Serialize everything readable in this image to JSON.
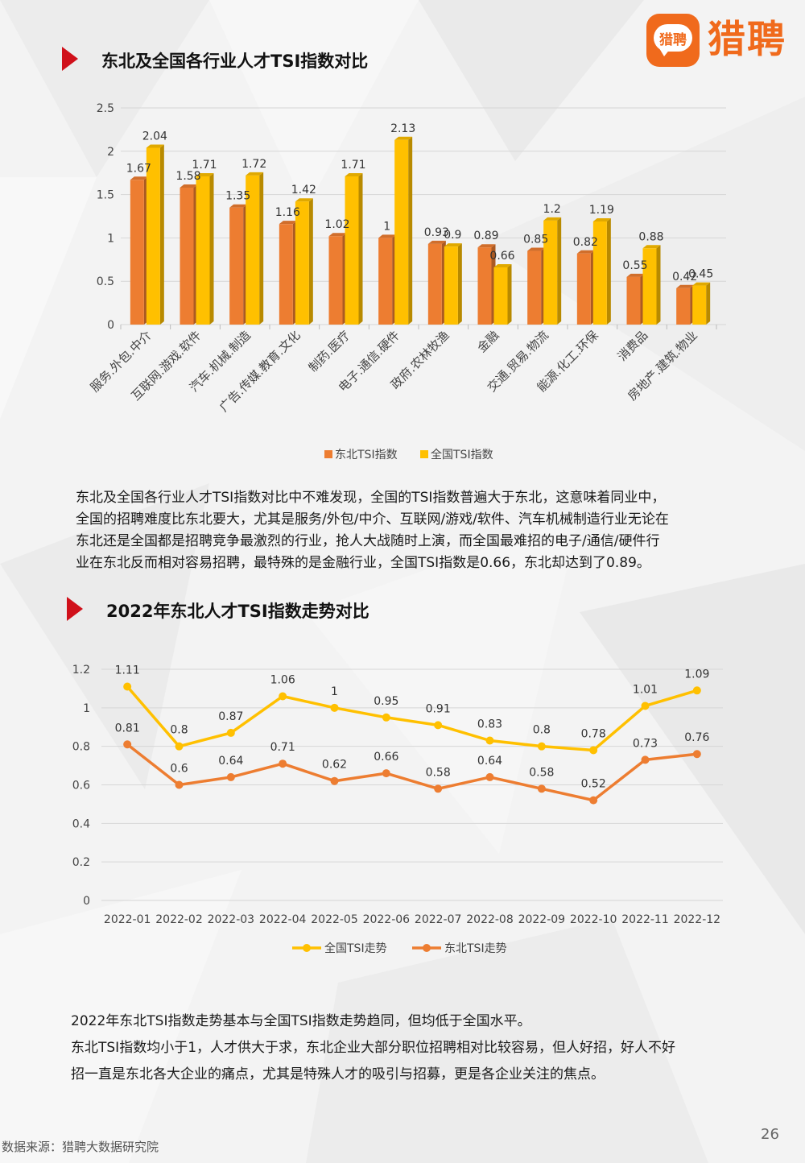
{
  "logo": {
    "badge_text": "猎聘",
    "brand_text": "猎聘"
  },
  "section1": {
    "title": "东北及全国各行业人才TSI指数对比"
  },
  "section2": {
    "title": "2022年东北人才TSI指数走势对比"
  },
  "paragraph1": {
    "lines": [
      "东北及全国各行业人才TSI指数对比中不难发现，全国的TSI指数普遍大于东北，这意味着同业中，",
      "全国的招聘难度比东北要大，尤其是服务/外包/中介、互联网/游戏/软件、汽车机械制造行业无论在",
      "东北还是全国都是招聘竞争最激烈的行业，抢人大战随时上演，而全国最难招的电子/通信/硬件行",
      "业在东北反而相对容易招聘，最特殊的是金融行业，全国TSI指数是0.66，东北却达到了0.89。"
    ]
  },
  "paragraph2": {
    "lines": [
      "2022年东北TSI指数走势基本与全国TSI指数走势趋同，但均低于全国水平。",
      "东北TSI指数均小于1，人才供大于求，东北企业大部分职位招聘相对比较容易，但人好招，好人不好",
      "招一直是东北各大企业的痛点，尤其是特殊人才的吸引与招募，更是各企业关注的焦点。"
    ]
  },
  "footer": {
    "source": "数据来源：猎聘大数据研究院",
    "page_number": "26"
  },
  "colors": {
    "orange": "#ed7d31",
    "yellow": "#ffc000",
    "red_arrow": "#d0101a",
    "brand": "#f06a1c"
  },
  "chart_data": [
    {
      "type": "bar",
      "title": "",
      "categories": [
        "服务.外包.中介",
        "互联网.游戏.软件",
        "汽车.机械.制造",
        "广告.传媒.教育.文化",
        "制药.医疗",
        "电子.通信.硬件",
        "政府.农林牧渔",
        "金融",
        "交通.贸易.物流",
        "能源.化工.环保",
        "消费品",
        "房地产.建筑.物业"
      ],
      "series": [
        {
          "name": "东北TSI指数",
          "color": "#ed7d31",
          "values": [
            1.67,
            1.58,
            1.35,
            1.16,
            1.02,
            1,
            0.93,
            0.89,
            0.85,
            0.82,
            0.55,
            0.42
          ]
        },
        {
          "name": "全国TSI指数",
          "color": "#ffc000",
          "values": [
            2.04,
            1.71,
            1.72,
            1.42,
            1.71,
            2.13,
            0.9,
            0.66,
            1.2,
            1.19,
            0.88,
            0.45
          ]
        }
      ],
      "ylim": [
        0,
        2.5
      ],
      "yticks": [
        "0",
        "0.5",
        "1",
        "1.5",
        "2",
        "2.5"
      ],
      "grid": true,
      "legend": "bottom"
    },
    {
      "type": "line",
      "title": "",
      "categories": [
        "2022-01",
        "2022-02",
        "2022-03",
        "2022-04",
        "2022-05",
        "2022-06",
        "2022-07",
        "2022-08",
        "2022-09",
        "2022-10",
        "2022-11",
        "2022-12"
      ],
      "series": [
        {
          "name": "全国TSI走势",
          "color": "#ffc000",
          "values": [
            1.11,
            0.8,
            0.87,
            1.06,
            1,
            0.95,
            0.91,
            0.83,
            0.8,
            0.78,
            1.01,
            1.09
          ]
        },
        {
          "name": "东北TSI走势",
          "color": "#ed7d31",
          "values": [
            0.81,
            0.6,
            0.64,
            0.71,
            0.62,
            0.66,
            0.58,
            0.64,
            0.58,
            0.52,
            0.73,
            0.76
          ]
        }
      ],
      "ylim": [
        0,
        1.2
      ],
      "yticks": [
        "0",
        "0.2",
        "0.4",
        "0.6",
        "0.8",
        "1",
        "1.2"
      ],
      "grid": true,
      "legend": "bottom"
    }
  ]
}
